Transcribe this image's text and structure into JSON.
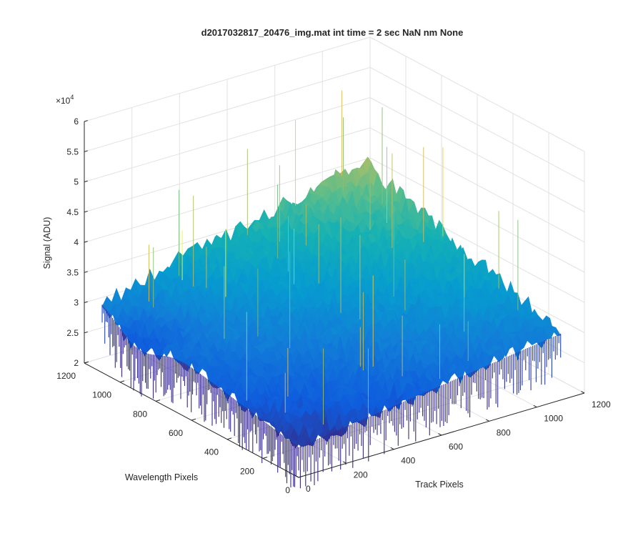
{
  "chart_data": {
    "type": "surface",
    "title": "d2017032817_20476_img.mat int time = 2 sec  NaN nm None",
    "xlabel": "Track Pixels",
    "ylabel": "Wavelength Pixels",
    "zlabel": "Signal (ADU)",
    "z_exponent_label": "×10",
    "z_exponent_power": "4",
    "xlim": [
      0,
      1200
    ],
    "ylim": [
      0,
      1200
    ],
    "zlim": [
      20000,
      60000
    ],
    "x_ticks": [
      "0",
      "200",
      "400",
      "600",
      "800",
      "1000",
      "1200"
    ],
    "y_ticks": [
      "0",
      "200",
      "400",
      "600",
      "800",
      "1000",
      "1200"
    ],
    "z_ticks": [
      "2",
      "2.5",
      "3",
      "3.5",
      "4",
      "4.5",
      "5",
      "5.5",
      "6"
    ],
    "grid": true,
    "colormap": "parula",
    "surface_extent": {
      "x": [
        0,
        1100
      ],
      "y": [
        0,
        1100
      ]
    },
    "surface_levels": {
      "corner_x0_y0": 25000,
      "corner_xmax_y0": 31000,
      "corner_x0_ymax": 32000,
      "corner_xmax_ymax": 42000,
      "noise_amplitude": 3000,
      "dip_near_x0_y900": 26000
    }
  }
}
